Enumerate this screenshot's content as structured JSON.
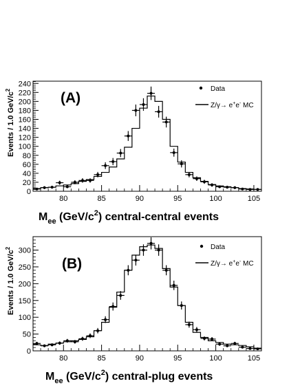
{
  "chart_data": [
    {
      "type": "histogram",
      "panel_label": "(A)",
      "ylabel": "Events / 1.0 GeV/c",
      "ylabel_sup": "2",
      "xlabel_main": "M",
      "xlabel_sub": "ee",
      "xlabel_unit": " (GeV/c",
      "xlabel_sup": "2",
      "xlabel_tail": ") central-central events",
      "xlim": [
        76,
        106
      ],
      "ylim": [
        0,
        245
      ],
      "xticks": [
        80,
        85,
        90,
        95,
        100,
        105
      ],
      "yticks": [
        0,
        20,
        40,
        60,
        80,
        100,
        120,
        140,
        160,
        180,
        200,
        220,
        240
      ],
      "legend": {
        "data_label": "Data",
        "mc_label_pre": "Z/γ→ e",
        "mc_sup1": "+",
        "mc_mid": "e",
        "mc_sup2": "-",
        "mc_post": " MC"
      },
      "bin_lo": [
        76,
        77,
        78,
        79,
        80,
        81,
        82,
        83,
        84,
        85,
        86,
        87,
        88,
        89,
        90,
        91,
        92,
        93,
        94,
        95,
        96,
        97,
        98,
        99,
        100,
        101,
        102,
        103,
        104,
        105
      ],
      "mc": [
        6,
        8,
        9,
        12,
        14,
        17,
        22,
        26,
        33,
        42,
        54,
        72,
        98,
        140,
        185,
        212,
        200,
        160,
        100,
        65,
        42,
        30,
        22,
        15,
        12,
        10,
        8,
        6,
        5,
        4
      ],
      "data": [
        5,
        8,
        9,
        19,
        10,
        20,
        24,
        24,
        37,
        57,
        66,
        85,
        123,
        180,
        193,
        218,
        177,
        154,
        86,
        61,
        37,
        28,
        21,
        14,
        10,
        9,
        8,
        5,
        4,
        4
      ],
      "err": [
        2.5,
        3,
        3,
        4.5,
        3,
        4.5,
        5,
        5,
        6,
        7.5,
        8,
        9,
        11,
        13,
        14,
        15,
        13,
        12,
        9,
        8,
        6,
        5,
        4.5,
        4,
        3,
        3,
        3,
        2.5,
        2,
        2
      ]
    },
    {
      "type": "histogram",
      "panel_label": "(B)",
      "ylabel": "Events / 1.0 GeV/c",
      "ylabel_sup": "2",
      "xlabel_main": "M",
      "xlabel_sub": "ee",
      "xlabel_unit": " (GeV/c",
      "xlabel_sup": "2",
      "xlabel_tail": ") central-plug events",
      "xlim": [
        76,
        106
      ],
      "ylim": [
        0,
        340
      ],
      "xticks": [
        80,
        85,
        90,
        95,
        100,
        105
      ],
      "yticks": [
        0,
        50,
        100,
        150,
        200,
        250,
        300
      ],
      "legend": {
        "data_label": "Data",
        "mc_label_pre": "Z/γ→ e",
        "mc_sup1": "+",
        "mc_mid": "e",
        "mc_sup2": "-",
        "mc_post": " MC"
      },
      "bin_lo": [
        76,
        77,
        78,
        79,
        80,
        81,
        82,
        83,
        84,
        85,
        86,
        87,
        88,
        89,
        90,
        91,
        92,
        93,
        94,
        95,
        96,
        97,
        98,
        99,
        100,
        101,
        102,
        103,
        104,
        105
      ],
      "mc": [
        18,
        16,
        20,
        23,
        27,
        30,
        34,
        42,
        60,
        85,
        130,
        175,
        240,
        285,
        310,
        315,
        305,
        245,
        190,
        135,
        85,
        55,
        40,
        30,
        25,
        20,
        18,
        16,
        12,
        8
      ],
      "data": [
        22,
        15,
        18,
        23,
        30,
        27,
        36,
        45,
        60,
        93,
        132,
        165,
        240,
        270,
        300,
        320,
        300,
        240,
        195,
        135,
        78,
        63,
        37,
        35,
        20,
        15,
        22,
        11,
        7,
        6
      ],
      "err": [
        5,
        4,
        4.5,
        5,
        5.5,
        5.5,
        6,
        7,
        8,
        10,
        12,
        13,
        15,
        16,
        17,
        18,
        17,
        15,
        14,
        12,
        9,
        8,
        6,
        6,
        5,
        4,
        5,
        4,
        3,
        3
      ]
    }
  ]
}
